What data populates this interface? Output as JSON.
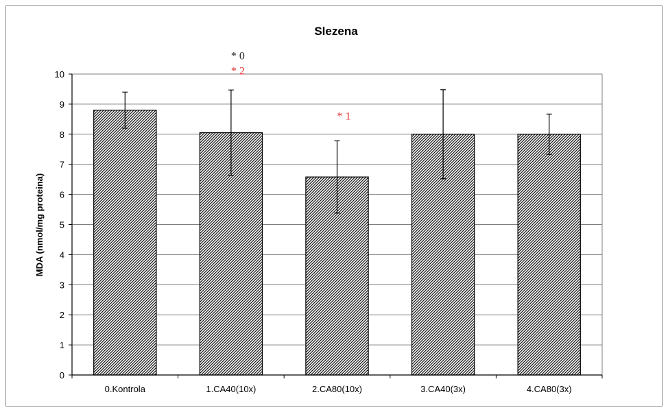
{
  "chart_data": {
    "type": "bar",
    "title": "Slezena",
    "xlabel": "",
    "ylabel": "MDA (nmol/mg proteina)",
    "ylim": [
      0,
      10
    ],
    "yticks": [
      0,
      1,
      2,
      3,
      4,
      5,
      6,
      7,
      8,
      9,
      10
    ],
    "grid": true,
    "legend": "none",
    "categories": [
      "0.Kontrola",
      "1.CA40(10x)",
      "2.CA80(10x)",
      "3.CA40(3x)",
      "4.CA80(3x)"
    ],
    "values": [
      8.8,
      8.05,
      6.58,
      8.0,
      8.0
    ],
    "errors": [
      0.6,
      1.42,
      1.2,
      1.48,
      0.67
    ],
    "bar_pattern": "diagonal hatch",
    "annotations": [
      {
        "category": "1.CA40(10x)",
        "y": 10.6,
        "text": "* 0",
        "color": "#222222"
      },
      {
        "category": "1.CA40(10x)",
        "y": 10.1,
        "text": "* 2",
        "color": "#e03030"
      },
      {
        "category": "2.CA80(10x)",
        "y": 8.6,
        "text": "* 1",
        "color": "#e03030"
      }
    ]
  }
}
